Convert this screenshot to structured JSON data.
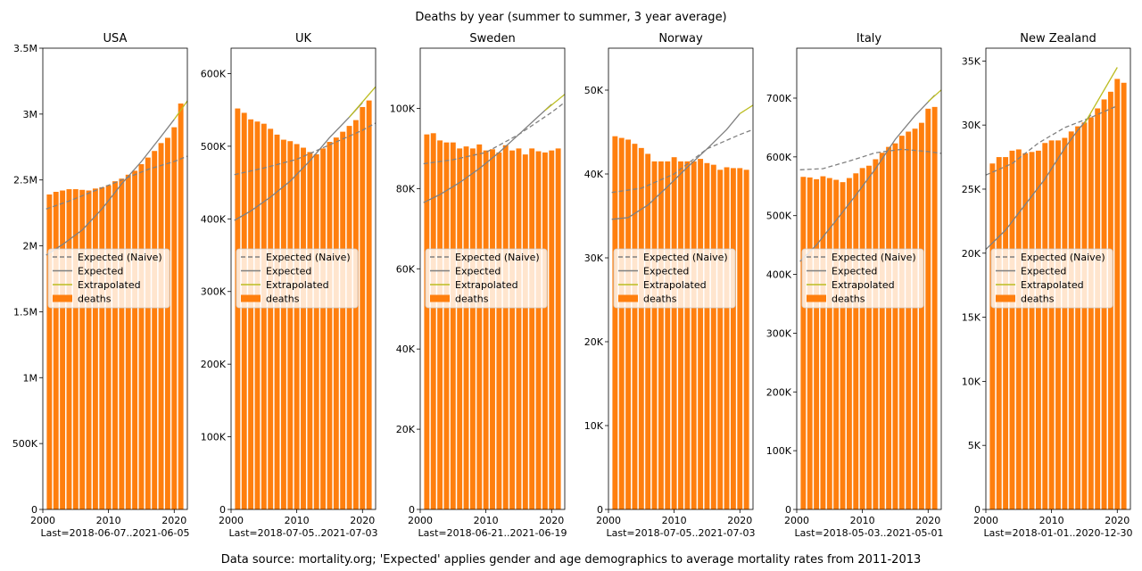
{
  "figure": {
    "suptitle": "Deaths by year (summer to summer, 3 year average)",
    "footnote": "Data source: mortality.org; 'Expected' applies gender and age demographics to average mortality rates from 2011-2013"
  },
  "legend_labels": {
    "naive": "Expected (Naive)",
    "expected": "Expected",
    "extrapolated": "Extrapolated",
    "deaths": "deaths"
  },
  "colors": {
    "bars": "#ff7f0e",
    "naive": "#808080",
    "expected": "#808080",
    "extrapolated": "#bcbd22"
  },
  "chart_data": [
    {
      "type": "bar",
      "title": "USA",
      "xlabel": "Last=2018-06-07..2021-06-05",
      "xlim": [
        2000,
        2022
      ],
      "ylim": [
        0,
        3500000
      ],
      "xticks": [
        2000,
        2010,
        2020
      ],
      "yticks": [
        0,
        500000,
        1000000,
        1500000,
        2000000,
        2500000,
        3000000,
        3500000
      ],
      "ytick_labels": [
        "0",
        "500K",
        "1M",
        "1.5M",
        "2M",
        "2.5M",
        "3M",
        "3.5M"
      ],
      "legend_loc": "center",
      "series": [
        {
          "name": "deaths",
          "type": "bar",
          "x": [
            2001,
            2002,
            2003,
            2004,
            2005,
            2006,
            2007,
            2008,
            2009,
            2010,
            2011,
            2012,
            2013,
            2014,
            2015,
            2016,
            2017,
            2018,
            2019,
            2020,
            2021
          ],
          "values": [
            2390000,
            2410000,
            2420000,
            2430000,
            2430000,
            2425000,
            2420000,
            2435000,
            2445000,
            2460000,
            2490000,
            2510000,
            2540000,
            2570000,
            2620000,
            2670000,
            2720000,
            2780000,
            2820000,
            2900000,
            3080000
          ]
        },
        {
          "name": "Expected (Naive)",
          "type": "line",
          "dash": true,
          "x": [
            2000.5,
            2004,
            2008,
            2012,
            2016,
            2020,
            2022
          ],
          "values": [
            2280000,
            2340000,
            2420000,
            2500000,
            2580000,
            2640000,
            2680000
          ]
        },
        {
          "name": "Expected",
          "type": "line",
          "x": [
            2000.5,
            2003,
            2006,
            2009,
            2012,
            2015,
            2018,
            2020
          ],
          "values": [
            1930000,
            2010000,
            2120000,
            2280000,
            2470000,
            2640000,
            2830000,
            2960000
          ]
        },
        {
          "name": "Extrapolated",
          "type": "line",
          "x": [
            2020,
            2022
          ],
          "values": [
            2960000,
            3100000
          ]
        }
      ]
    },
    {
      "type": "bar",
      "title": "UK",
      "xlabel": "Last=2018-07-05..2021-07-03",
      "xlim": [
        2000,
        2022
      ],
      "ylim": [
        0,
        635000
      ],
      "xticks": [
        2000,
        2010,
        2020
      ],
      "yticks": [
        0,
        100000,
        200000,
        300000,
        400000,
        500000,
        600000
      ],
      "ytick_labels": [
        "0",
        "100K",
        "200K",
        "300K",
        "400K",
        "500K",
        "600K"
      ],
      "legend_loc": "center",
      "series": [
        {
          "name": "deaths",
          "type": "bar",
          "x": [
            2001,
            2002,
            2003,
            2004,
            2005,
            2006,
            2007,
            2008,
            2009,
            2010,
            2011,
            2012,
            2013,
            2014,
            2015,
            2016,
            2017,
            2018,
            2019,
            2020,
            2021
          ],
          "values": [
            552000,
            546000,
            537000,
            534000,
            531000,
            524000,
            516000,
            509000,
            507000,
            503000,
            498000,
            492000,
            489000,
            497000,
            506000,
            512000,
            520000,
            528000,
            536000,
            554000,
            563000
          ]
        },
        {
          "name": "Expected (Naive)",
          "type": "line",
          "dash": true,
          "x": [
            2000.5,
            2005,
            2010,
            2015,
            2020,
            2022
          ],
          "values": [
            461000,
            470000,
            482000,
            502000,
            522000,
            532000
          ]
        },
        {
          "name": "Expected",
          "type": "line",
          "x": [
            2000.5,
            2003,
            2006,
            2009,
            2012,
            2015,
            2018,
            2020
          ],
          "values": [
            398000,
            411000,
            430000,
            452000,
            480000,
            512000,
            540000,
            560000
          ]
        },
        {
          "name": "Extrapolated",
          "type": "line",
          "x": [
            2018,
            2022
          ],
          "values": [
            540000,
            582000
          ]
        }
      ]
    },
    {
      "type": "bar",
      "title": "Sweden",
      "xlabel": "Last=2018-06-21..2021-06-19",
      "xlim": [
        2000,
        2022
      ],
      "ylim": [
        0,
        115000
      ],
      "xticks": [
        2000,
        2010,
        2020
      ],
      "yticks": [
        0,
        20000,
        40000,
        60000,
        80000,
        100000
      ],
      "ytick_labels": [
        "0",
        "20K",
        "40K",
        "60K",
        "80K",
        "100K"
      ],
      "legend_loc": "center",
      "series": [
        {
          "name": "deaths",
          "type": "bar",
          "x": [
            2001,
            2002,
            2003,
            2004,
            2005,
            2006,
            2007,
            2008,
            2009,
            2010,
            2011,
            2012,
            2013,
            2014,
            2015,
            2016,
            2017,
            2018,
            2019,
            2020,
            2021
          ],
          "values": [
            93500,
            93800,
            92000,
            91500,
            91500,
            90000,
            90500,
            90000,
            91000,
            89500,
            89800,
            89000,
            90800,
            89500,
            90000,
            88500,
            90000,
            89300,
            89000,
            89500,
            90000
          ]
        },
        {
          "name": "Expected (Naive)",
          "type": "line",
          "dash": true,
          "x": [
            2000.5,
            2005,
            2010,
            2015,
            2020,
            2022
          ],
          "values": [
            86200,
            87200,
            89000,
            93500,
            99000,
            101500
          ]
        },
        {
          "name": "Expected",
          "type": "line",
          "x": [
            2000.5,
            2003,
            2006,
            2009,
            2012,
            2015,
            2018,
            2020
          ],
          "values": [
            76500,
            78500,
            81500,
            85000,
            89000,
            93500,
            98000,
            101000
          ]
        },
        {
          "name": "Extrapolated",
          "type": "line",
          "x": [
            2019,
            2022
          ],
          "values": [
            99500,
            103500
          ]
        }
      ]
    },
    {
      "type": "bar",
      "title": "Norway",
      "xlabel": "Last=2018-07-05..2021-07-03",
      "xlim": [
        2000,
        2022
      ],
      "ylim": [
        0,
        55000
      ],
      "xticks": [
        2000,
        2010,
        2020
      ],
      "yticks": [
        0,
        10000,
        20000,
        30000,
        40000,
        50000
      ],
      "ytick_labels": [
        "0",
        "10K",
        "20K",
        "30K",
        "40K",
        "50K"
      ],
      "legend_loc": "center",
      "series": [
        {
          "name": "deaths",
          "type": "bar",
          "x": [
            2001,
            2002,
            2003,
            2004,
            2005,
            2006,
            2007,
            2008,
            2009,
            2010,
            2011,
            2012,
            2013,
            2014,
            2015,
            2016,
            2017,
            2018,
            2019,
            2020,
            2021
          ],
          "values": [
            44500,
            44300,
            44100,
            43600,
            43100,
            42400,
            41500,
            41500,
            41500,
            42000,
            41500,
            41500,
            41500,
            41800,
            41300,
            41100,
            40500,
            40800,
            40700,
            40700,
            40500
          ]
        },
        {
          "name": "Expected (Naive)",
          "type": "line",
          "dash": true,
          "x": [
            2000.5,
            2005,
            2010,
            2015,
            2020,
            2022
          ],
          "values": [
            37800,
            38300,
            40000,
            43000,
            44700,
            45300
          ]
        },
        {
          "name": "Expected",
          "type": "line",
          "x": [
            2000.5,
            2003,
            2006,
            2009,
            2012,
            2015,
            2018,
            2020
          ],
          "values": [
            34600,
            34800,
            36300,
            38500,
            40800,
            43000,
            45300,
            47200
          ]
        },
        {
          "name": "Extrapolated",
          "type": "line",
          "x": [
            2020,
            2022
          ],
          "values": [
            47200,
            48200
          ]
        }
      ]
    },
    {
      "type": "bar",
      "title": "Italy",
      "xlabel": "Last=2018-05-03..2021-05-01",
      "xlim": [
        2000,
        2022
      ],
      "ylim": [
        0,
        785000
      ],
      "xticks": [
        2000,
        2010,
        2020
      ],
      "yticks": [
        0,
        100000,
        200000,
        300000,
        400000,
        500000,
        600000,
        700000
      ],
      "ytick_labels": [
        "0",
        "100K",
        "200K",
        "300K",
        "400K",
        "500K",
        "600K",
        "700K"
      ],
      "legend_loc": "center",
      "series": [
        {
          "name": "deaths",
          "type": "bar",
          "x": [
            2001,
            2002,
            2003,
            2004,
            2005,
            2006,
            2007,
            2008,
            2009,
            2010,
            2011,
            2012,
            2013,
            2014,
            2015,
            2016,
            2017,
            2018,
            2019,
            2020,
            2021
          ],
          "values": [
            566000,
            565000,
            562000,
            567000,
            564000,
            561000,
            557000,
            564000,
            572000,
            581000,
            585000,
            596000,
            607000,
            617000,
            623000,
            636000,
            643000,
            648000,
            658000,
            682000,
            685000
          ]
        },
        {
          "name": "Expected (Naive)",
          "type": "line",
          "dash": true,
          "x": [
            2000.5,
            2004,
            2008,
            2012,
            2016,
            2020,
            2022
          ],
          "values": [
            578000,
            580000,
            593000,
            607000,
            613000,
            609000,
            606000
          ]
        },
        {
          "name": "Expected",
          "type": "line",
          "x": [
            2000.5,
            2003,
            2006,
            2009,
            2012,
            2015,
            2018,
            2021
          ],
          "values": [
            422000,
            450000,
            492000,
            535000,
            580000,
            630000,
            670000,
            705000
          ]
        },
        {
          "name": "Extrapolated",
          "type": "line",
          "x": [
            2020,
            2022
          ],
          "values": [
            694000,
            714000
          ]
        }
      ]
    },
    {
      "type": "bar",
      "title": "New Zealand",
      "xlabel": "Last=2018-01-01..2020-12-30",
      "xlim": [
        2000,
        2022
      ],
      "ylim": [
        0,
        36000
      ],
      "xticks": [
        2000,
        2010,
        2020
      ],
      "yticks": [
        0,
        5000,
        10000,
        15000,
        20000,
        25000,
        30000,
        35000
      ],
      "ytick_labels": [
        "0",
        "5K",
        "10K",
        "15K",
        "20K",
        "25K",
        "30K",
        "35K"
      ],
      "legend_loc": "center",
      "series": [
        {
          "name": "deaths",
          "type": "bar",
          "x": [
            2001,
            2002,
            2003,
            2004,
            2005,
            2006,
            2007,
            2008,
            2009,
            2010,
            2011,
            2012,
            2013,
            2014,
            2015,
            2016,
            2017,
            2018,
            2019,
            2020,
            2021
          ],
          "values": [
            27000,
            27500,
            27500,
            28000,
            28100,
            27800,
            27900,
            28000,
            28600,
            28800,
            28800,
            29000,
            29500,
            29900,
            30200,
            30600,
            31300,
            32000,
            32600,
            33600,
            33300
          ]
        },
        {
          "name": "Expected (Naive)",
          "type": "line",
          "dash": true,
          "x": [
            2000,
            2004,
            2008,
            2012,
            2016,
            2020
          ],
          "values": [
            26100,
            27000,
            28600,
            29800,
            30600,
            31500
          ]
        },
        {
          "name": "Expected",
          "type": "line",
          "x": [
            2000,
            2003,
            2006,
            2009,
            2012,
            2014,
            2016
          ],
          "values": [
            20300,
            21800,
            23800,
            25800,
            28200,
            29600,
            30800
          ]
        },
        {
          "name": "Extrapolated",
          "type": "line",
          "x": [
            2015,
            2020
          ],
          "values": [
            30100,
            34500
          ]
        }
      ]
    }
  ]
}
